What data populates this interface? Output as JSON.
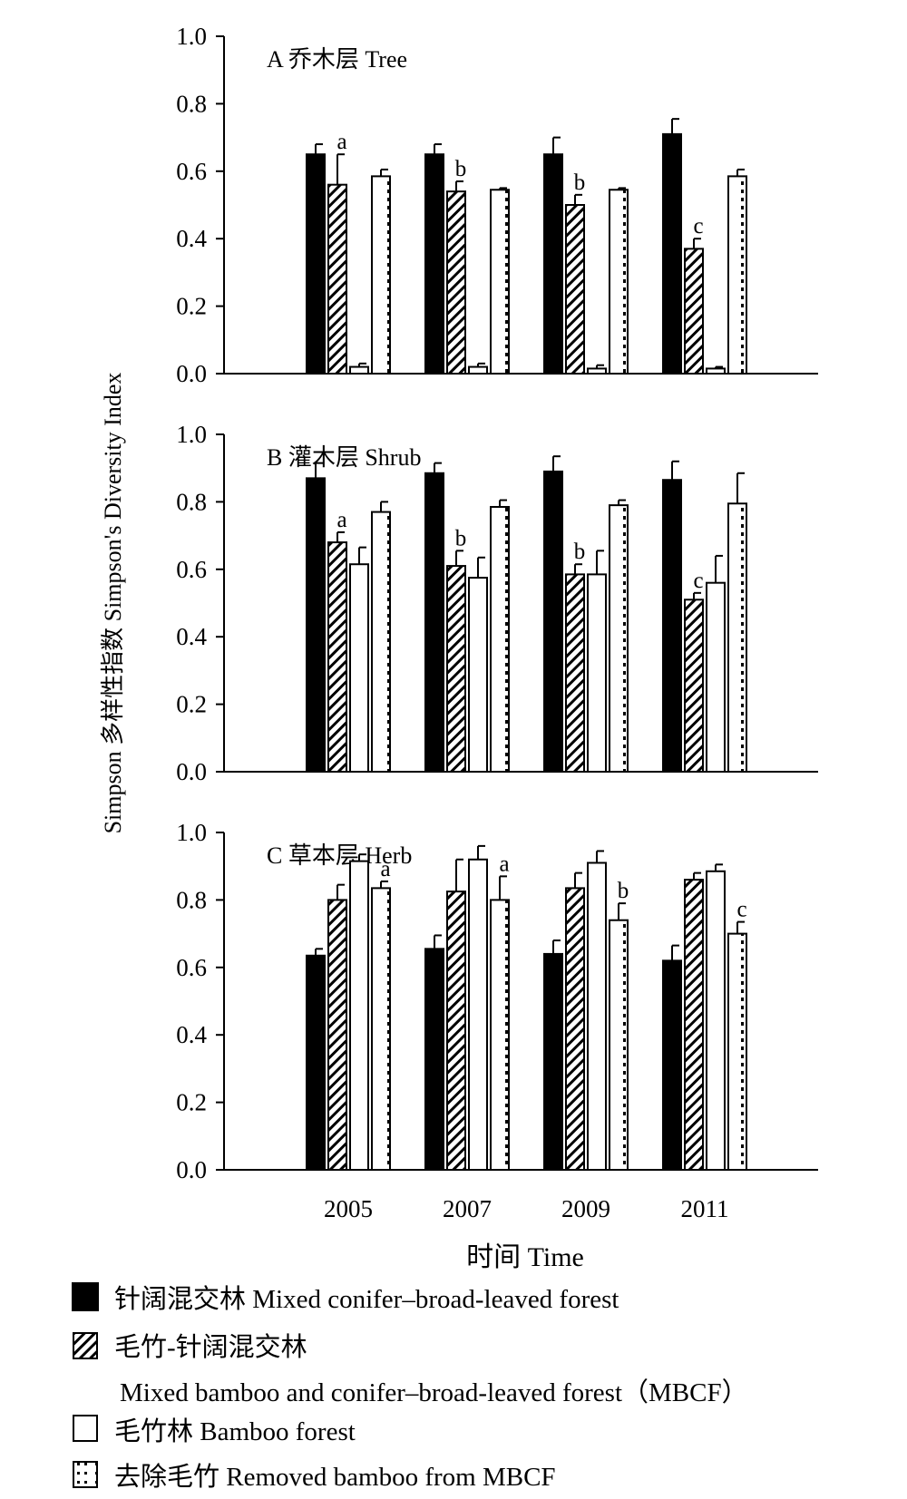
{
  "chart_data": {
    "type": "bar",
    "categories": [
      "2005",
      "2007",
      "2009",
      "2011"
    ],
    "xlabel": "时间 Time",
    "ylabel": "Simpson 多样性指数 Simpson's Diversity Index",
    "ylim": [
      0,
      1.0
    ],
    "yticks": [
      "0.0",
      "0.2",
      "0.4",
      "0.6",
      "0.8",
      "1.0"
    ],
    "series_legend": [
      {
        "name": "针阔混交林 Mixed conifer–broad-leaved forest",
        "pattern": "solid"
      },
      {
        "name": "毛竹-针阔混交林",
        "name2": "Mixed bamboo and conifer–broad-leaved forest（MBCF）",
        "pattern": "hatch"
      },
      {
        "name": "毛竹林 Bamboo  forest",
        "pattern": "empty"
      },
      {
        "name": "去除毛竹 Removed bamboo from MBCF",
        "pattern": "dotted"
      }
    ],
    "panels": [
      {
        "title": "A  乔木层  Tree",
        "series": [
          {
            "values": [
              0.65,
              0.65,
              0.65,
              0.71
            ],
            "errors": [
              0.03,
              0.03,
              0.05,
              0.045
            ]
          },
          {
            "values": [
              0.56,
              0.54,
              0.5,
              0.37
            ],
            "errors": [
              0.09,
              0.03,
              0.03,
              0.03
            ]
          },
          {
            "values": [
              0.02,
              0.02,
              0.015,
              0.015
            ],
            "errors": [
              0.01,
              0.01,
              0.01,
              0.005
            ]
          },
          {
            "values": [
              0.585,
              0.545,
              0.545,
              0.585
            ],
            "errors": [
              0.02,
              0.005,
              0.005,
              0.02
            ]
          }
        ],
        "letters": {
          "series": 1,
          "labels": [
            "a",
            "b",
            "b",
            "c"
          ]
        }
      },
      {
        "title": "B  灌木层 Shrub",
        "series": [
          {
            "values": [
              0.87,
              0.885,
              0.89,
              0.865
            ],
            "errors": [
              0.045,
              0.03,
              0.045,
              0.055
            ]
          },
          {
            "values": [
              0.68,
              0.61,
              0.585,
              0.51
            ],
            "errors": [
              0.03,
              0.045,
              0.03,
              0.02
            ]
          },
          {
            "values": [
              0.615,
              0.575,
              0.585,
              0.56
            ],
            "errors": [
              0.05,
              0.06,
              0.07,
              0.08
            ]
          },
          {
            "values": [
              0.77,
              0.785,
              0.79,
              0.795
            ],
            "errors": [
              0.03,
              0.02,
              0.015,
              0.09
            ]
          }
        ],
        "letters": {
          "series": 1,
          "labels": [
            "a",
            "b",
            "b",
            "c"
          ]
        }
      },
      {
        "title": "C  草本层 Herb",
        "series": [
          {
            "values": [
              0.635,
              0.655,
              0.64,
              0.62
            ],
            "errors": [
              0.02,
              0.04,
              0.04,
              0.045
            ]
          },
          {
            "values": [
              0.8,
              0.825,
              0.835,
              0.86
            ],
            "errors": [
              0.045,
              0.095,
              0.045,
              0.02
            ]
          },
          {
            "values": [
              0.915,
              0.92,
              0.91,
              0.885
            ],
            "errors": [
              0.02,
              0.04,
              0.035,
              0.02
            ]
          },
          {
            "values": [
              0.835,
              0.8,
              0.74,
              0.7
            ],
            "errors": [
              0.02,
              0.07,
              0.05,
              0.035
            ]
          }
        ],
        "letters": {
          "series": 3,
          "labels": [
            "a",
            "a",
            "b",
            "c"
          ]
        }
      }
    ]
  }
}
